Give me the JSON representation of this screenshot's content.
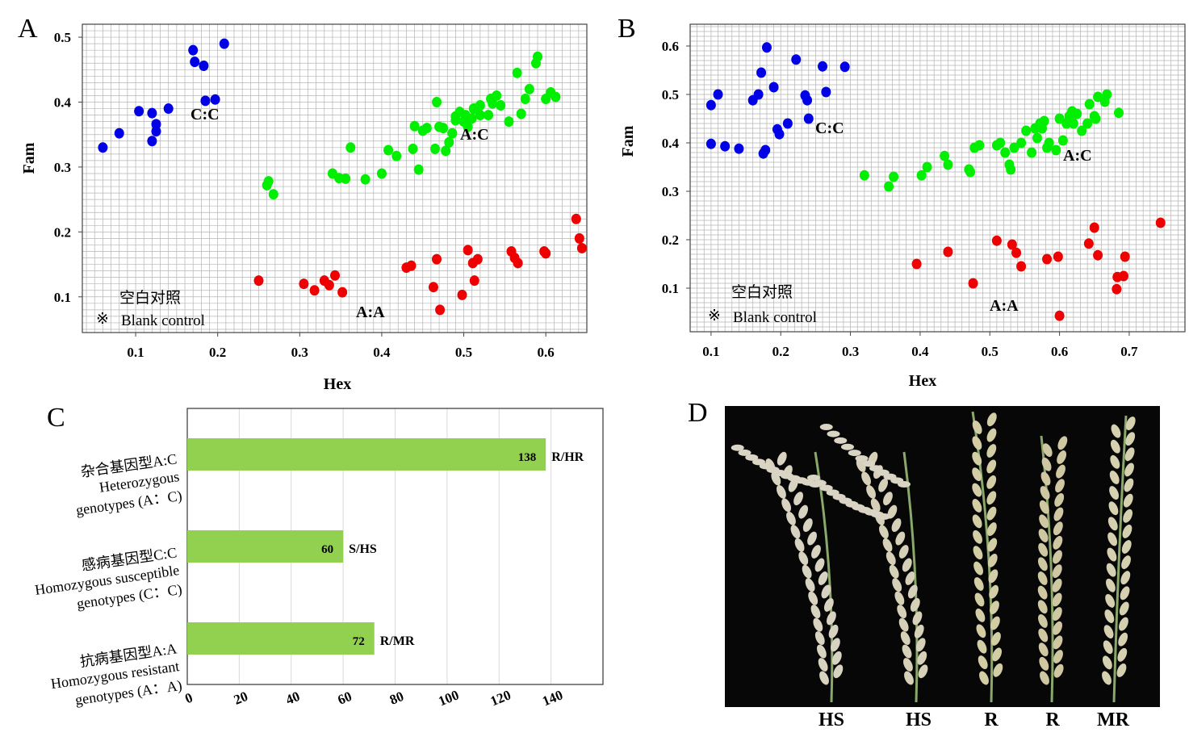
{
  "figure": {
    "panel_letters": [
      "A",
      "B",
      "C",
      "D"
    ]
  },
  "colors": {
    "cc": "#0000e6",
    "ac": "#00ee00",
    "aa": "#ee0000",
    "bar": "#92d050",
    "grid": "#b4b4b4",
    "photo_bg": "#070707"
  },
  "chart_data": [
    {
      "type": "scatter",
      "panel": "A",
      "xlabel": "Hex",
      "ylabel": "Fam",
      "xlim": [
        0.035,
        0.65
      ],
      "ylim": [
        0.045,
        0.52
      ],
      "xticks": [
        "0.1",
        "0.2",
        "0.3",
        "0.4",
        "0.5",
        "0.6"
      ],
      "yticks": [
        "0.1",
        "0.2",
        "0.3",
        "0.4",
        "0.5"
      ],
      "grid": true,
      "group_labels": [
        "C:C",
        "A:C",
        "A:A"
      ],
      "blank_control": {
        "label_cn": "空白对照",
        "symbol": "※",
        "label_en": "Blank control"
      },
      "series": [
        {
          "name": "C:C",
          "color_key": "cc",
          "x": [
            0.06,
            0.08,
            0.104,
            0.12,
            0.12,
            0.125,
            0.125,
            0.14,
            0.17,
            0.172,
            0.183,
            0.185,
            0.197,
            0.208
          ],
          "y": [
            0.33,
            0.352,
            0.386,
            0.383,
            0.34,
            0.355,
            0.366,
            0.39,
            0.48,
            0.462,
            0.456,
            0.402,
            0.404,
            0.49
          ]
        },
        {
          "name": "A:C",
          "color_key": "ac",
          "x": [
            0.26,
            0.262,
            0.268,
            0.34,
            0.348,
            0.356,
            0.362,
            0.38,
            0.4,
            0.408,
            0.418,
            0.438,
            0.44,
            0.445,
            0.45,
            0.455,
            0.465,
            0.467,
            0.47,
            0.475,
            0.478,
            0.482,
            0.486,
            0.49,
            0.49,
            0.495,
            0.5,
            0.502,
            0.505,
            0.51,
            0.512,
            0.515,
            0.52,
            0.52,
            0.53,
            0.533,
            0.535,
            0.54,
            0.545,
            0.555,
            0.565,
            0.57,
            0.575,
            0.58,
            0.588,
            0.59,
            0.6,
            0.606,
            0.612
          ],
          "y": [
            0.272,
            0.278,
            0.258,
            0.29,
            0.283,
            0.282,
            0.33,
            0.281,
            0.29,
            0.326,
            0.317,
            0.328,
            0.363,
            0.296,
            0.356,
            0.36,
            0.328,
            0.4,
            0.362,
            0.36,
            0.325,
            0.338,
            0.352,
            0.372,
            0.378,
            0.385,
            0.37,
            0.38,
            0.362,
            0.375,
            0.39,
            0.39,
            0.38,
            0.395,
            0.38,
            0.405,
            0.398,
            0.41,
            0.395,
            0.37,
            0.445,
            0.382,
            0.405,
            0.42,
            0.46,
            0.47,
            0.405,
            0.415,
            0.408
          ]
        },
        {
          "name": "A:A",
          "color_key": "aa",
          "x": [
            0.25,
            0.305,
            0.318,
            0.33,
            0.336,
            0.343,
            0.352,
            0.43,
            0.436,
            0.463,
            0.467,
            0.471,
            0.498,
            0.505,
            0.511,
            0.513,
            0.517,
            0.558,
            0.562,
            0.566,
            0.598,
            0.6,
            0.637,
            0.641,
            0.644
          ],
          "y": [
            0.125,
            0.12,
            0.11,
            0.125,
            0.118,
            0.133,
            0.107,
            0.145,
            0.148,
            0.115,
            0.158,
            0.08,
            0.103,
            0.172,
            0.152,
            0.125,
            0.158,
            0.17,
            0.16,
            0.152,
            0.17,
            0.167,
            0.22,
            0.19,
            0.175
          ]
        }
      ]
    },
    {
      "type": "scatter",
      "panel": "B",
      "xlabel": "Hex",
      "ylabel": "Fam",
      "xlim": [
        0.07,
        0.78
      ],
      "ylim": [
        0.01,
        0.645
      ],
      "xticks": [
        "0.1",
        "0.2",
        "0.3",
        "0.4",
        "0.5",
        "0.6",
        "0.7"
      ],
      "yticks": [
        "0.1",
        "0.2",
        "0.3",
        "0.4",
        "0.5",
        "0.6"
      ],
      "grid": true,
      "group_labels": [
        "C:C",
        "A:C",
        "A:A"
      ],
      "blank_control": {
        "label_cn": "空白对照",
        "symbol": "※",
        "label_en": "Blank control"
      },
      "series": [
        {
          "name": "C:C",
          "color_key": "cc",
          "x": [
            0.1,
            0.1,
            0.11,
            0.12,
            0.14,
            0.16,
            0.168,
            0.172,
            0.175,
            0.178,
            0.18,
            0.19,
            0.195,
            0.198,
            0.21,
            0.222,
            0.235,
            0.238,
            0.24,
            0.26,
            0.265,
            0.292
          ],
          "y": [
            0.478,
            0.398,
            0.5,
            0.393,
            0.388,
            0.488,
            0.5,
            0.545,
            0.378,
            0.385,
            0.597,
            0.515,
            0.428,
            0.418,
            0.44,
            0.572,
            0.498,
            0.488,
            0.45,
            0.558,
            0.505,
            0.557
          ]
        },
        {
          "name": "A:C",
          "color_key": "ac",
          "x": [
            0.32,
            0.355,
            0.362,
            0.402,
            0.41,
            0.435,
            0.44,
            0.47,
            0.472,
            0.478,
            0.485,
            0.51,
            0.515,
            0.522,
            0.528,
            0.53,
            0.535,
            0.545,
            0.552,
            0.56,
            0.565,
            0.568,
            0.572,
            0.575,
            0.578,
            0.582,
            0.585,
            0.595,
            0.6,
            0.605,
            0.61,
            0.614,
            0.618,
            0.62,
            0.625,
            0.632,
            0.64,
            0.643,
            0.65,
            0.652,
            0.655,
            0.665,
            0.668,
            0.685
          ],
          "y": [
            0.333,
            0.31,
            0.33,
            0.333,
            0.35,
            0.373,
            0.355,
            0.345,
            0.34,
            0.39,
            0.395,
            0.395,
            0.4,
            0.38,
            0.355,
            0.345,
            0.39,
            0.4,
            0.425,
            0.38,
            0.43,
            0.41,
            0.44,
            0.43,
            0.445,
            0.39,
            0.4,
            0.385,
            0.45,
            0.405,
            0.44,
            0.455,
            0.465,
            0.44,
            0.46,
            0.425,
            0.44,
            0.48,
            0.455,
            0.45,
            0.495,
            0.485,
            0.5,
            0.462
          ]
        },
        {
          "name": "A:A",
          "color_key": "aa",
          "x": [
            0.395,
            0.44,
            0.476,
            0.51,
            0.532,
            0.538,
            0.545,
            0.582,
            0.598,
            0.6,
            0.642,
            0.65,
            0.655,
            0.682,
            0.683,
            0.692,
            0.694,
            0.745
          ],
          "y": [
            0.15,
            0.175,
            0.11,
            0.198,
            0.19,
            0.173,
            0.145,
            0.16,
            0.165,
            0.043,
            0.192,
            0.225,
            0.168,
            0.098,
            0.123,
            0.125,
            0.165,
            0.235
          ]
        }
      ]
    },
    {
      "type": "bar",
      "panel": "C",
      "orientation": "horizontal",
      "categories": [
        {
          "cn": "杂合基因型A:C",
          "en1": "Heterozygous",
          "en2": "genotypes (A：C)"
        },
        {
          "cn": "感病基因型C:C",
          "en1": "Homozygous susceptible",
          "en2": "genotypes (C：C)"
        },
        {
          "cn": "抗病基因型A:A",
          "en1": "Homozygous resistant",
          "en2": "genotypes (A：A)"
        }
      ],
      "values": [
        138,
        60,
        72
      ],
      "grades": [
        "R/HR",
        "S/HS",
        "R/MR"
      ],
      "xlim": [
        0,
        160
      ],
      "xticks": [
        "0",
        "20",
        "40",
        "60",
        "80",
        "100",
        "120",
        "140"
      ],
      "grid": true
    }
  ],
  "photo": {
    "labels": [
      "HS",
      "HS",
      "R",
      "R",
      "MR"
    ]
  }
}
